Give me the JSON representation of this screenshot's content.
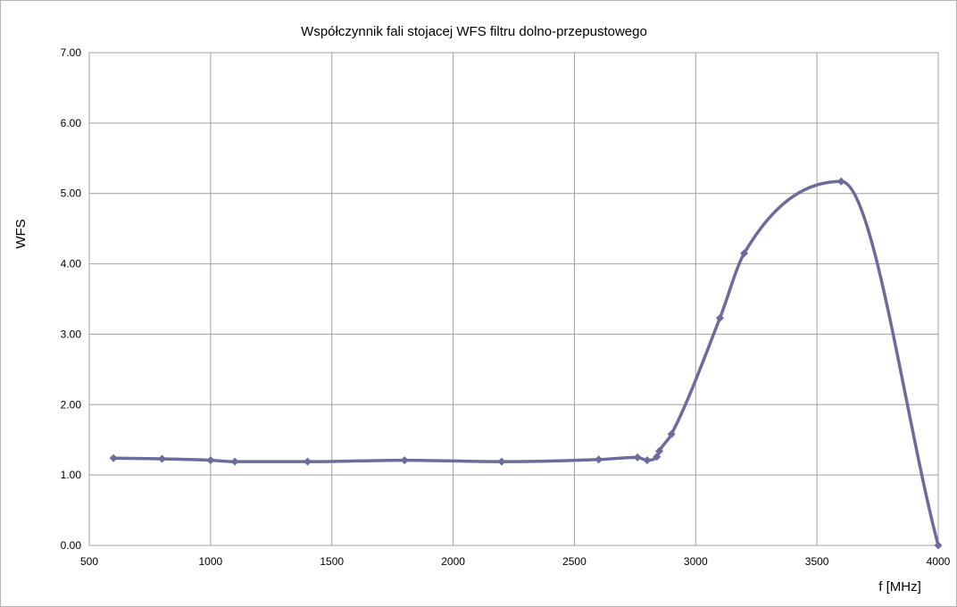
{
  "chart_data": {
    "type": "line",
    "title": "Współczynnik fali stojacej WFS filtru dolno-przepustowego",
    "xlabel": "f [MHz]",
    "ylabel": "WFS",
    "xlim": [
      500,
      4000
    ],
    "ylim": [
      0,
      7
    ],
    "x_ticks": [
      "500",
      "1000",
      "1500",
      "2000",
      "2500",
      "3000",
      "3500",
      "4000"
    ],
    "y_ticks": [
      "0.00",
      "1.00",
      "2.00",
      "3.00",
      "4.00",
      "5.00",
      "6.00",
      "7.00"
    ],
    "grid": true,
    "legend": "none",
    "series": [
      {
        "color": "#6b6b9c",
        "smooth": true,
        "marker": "diamond",
        "x": [
          600,
          800,
          1000,
          1100,
          1400,
          1800,
          2200,
          2600,
          2760,
          2800,
          2840,
          2850,
          2900,
          3100,
          3200,
          3600,
          4000
        ],
        "y": [
          1.24,
          1.23,
          1.21,
          1.19,
          1.19,
          1.21,
          1.19,
          1.22,
          1.25,
          1.21,
          1.26,
          1.34,
          1.58,
          3.23,
          4.15,
          5.17,
          0.0
        ]
      }
    ]
  }
}
